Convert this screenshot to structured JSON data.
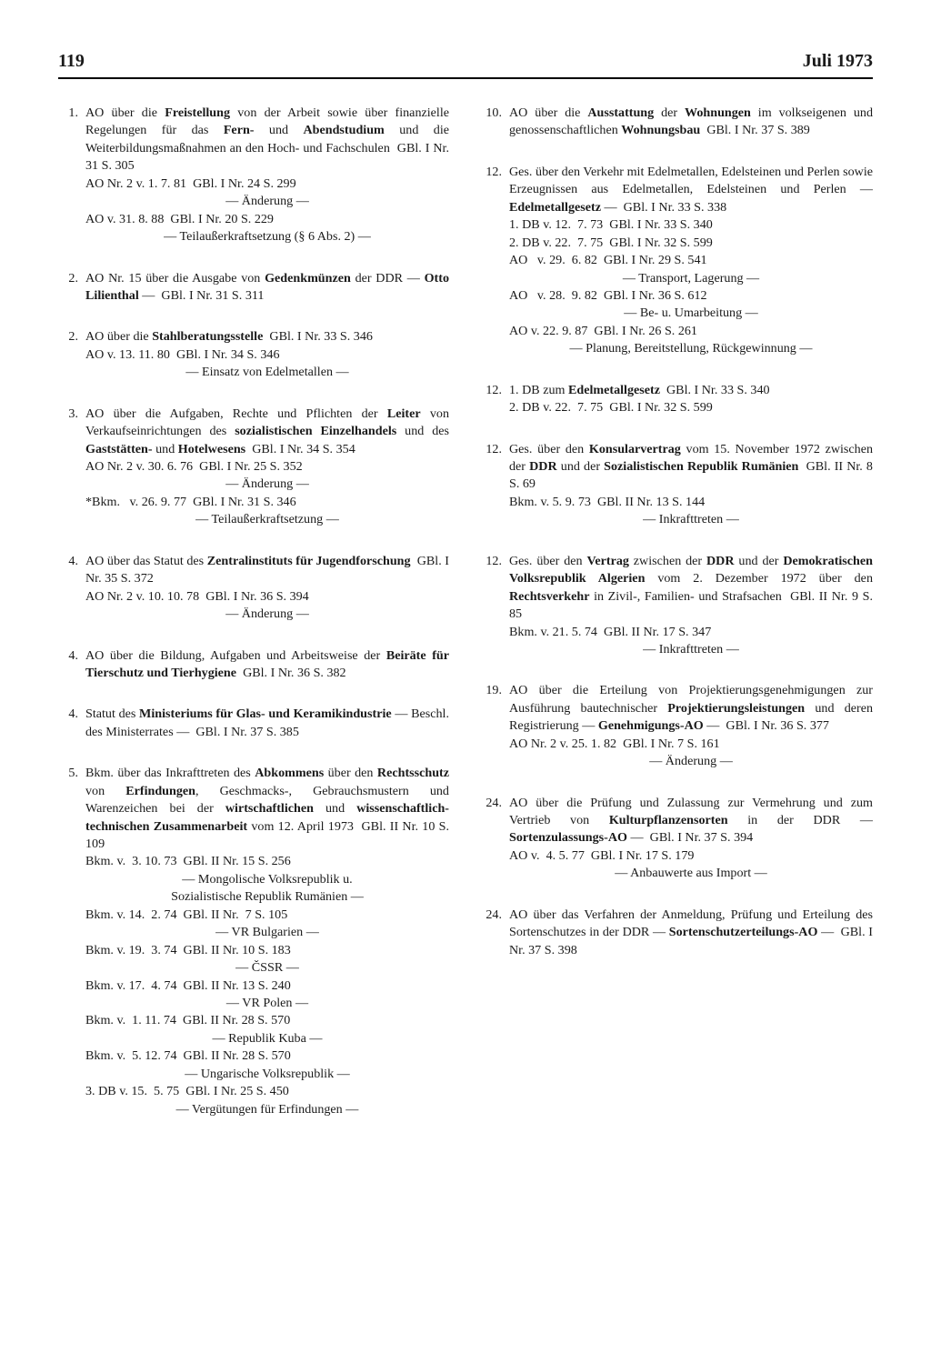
{
  "header": {
    "page": "119",
    "month": "Juli 1973"
  },
  "left": [
    {
      "n": "1.",
      "lines": [
        "AO über die <b>Freistellung</b> von der Arbeit sowie über finanzielle Regelungen für das <b>Fern-</b> und <b>Abendstudium</b> und die Weiterbildungsmaßnahmen an den Hoch- und Fachschulen&nbsp;&nbsp;GBl. I Nr. 31 S. 305",
        "AO Nr. 2 v. 1. 7. 81&nbsp;&nbsp;GBl. I Nr. 24 S. 299",
        "<span class='center'>— Änderung —</span>",
        "AO v. 31. 8. 88&nbsp;&nbsp;GBl. I Nr. 20 S. 229",
        "<span class='center'>— Teilaußerkraftsetzung (§ 6 Abs. 2) —</span>"
      ]
    },
    {
      "n": "2.",
      "lines": [
        "AO Nr. 15 über die Ausgabe von <b>Gedenkmünzen</b> der DDR — <b>Otto Lilienthal</b> —&nbsp;&nbsp;GBl. I Nr. 31 S. 311"
      ]
    },
    {
      "n": "2.",
      "lines": [
        "AO über die <b>Stahlberatungsstelle</b>&nbsp;&nbsp;GBl. I Nr. 33 S. 346",
        "AO v. 13. 11. 80&nbsp;&nbsp;GBl. I Nr. 34 S. 346",
        "<span class='center'>— Einsatz von Edelmetallen —</span>"
      ]
    },
    {
      "n": "3.",
      "lines": [
        "AO über die Aufgaben, Rechte und Pflichten der <b>Leiter</b> von Verkaufseinrichtungen des <b>sozialistischen Einzelhandels</b> und des <b>Gaststätten-</b> und <b>Hotelwesens</b>&nbsp;&nbsp;GBl. I Nr. 34 S. 354",
        "AO Nr. 2 v. 30. 6. 76&nbsp;&nbsp;GBl. I Nr. 25 S. 352",
        "<span class='center'>— Änderung —</span>",
        "*Bkm.&nbsp;&nbsp;&nbsp;v. 26. 9. 77&nbsp;&nbsp;GBl. I Nr. 31 S. 346",
        "<span class='center'>— Teilaußerkraftsetzung —</span>"
      ]
    },
    {
      "n": "4.",
      "lines": [
        "AO über das Statut des <b>Zentralinstituts für Jugendforschung</b>&nbsp;&nbsp;GBl. I Nr. 35 S. 372",
        "AO Nr. 2 v. 10. 10. 78&nbsp;&nbsp;GBl. I Nr. 36 S. 394",
        "<span class='center'>— Änderung —</span>"
      ]
    },
    {
      "n": "4.",
      "lines": [
        "AO über die Bildung, Aufgaben und Arbeitsweise der <b>Beiräte für Tierschutz und Tierhygiene</b>&nbsp;&nbsp;GBl. I Nr. 36 S. 382"
      ]
    },
    {
      "n": "4.",
      "lines": [
        "Statut des <b>Ministeriums für Glas- und Keramikindustrie</b> — Beschl. des Ministerrates —&nbsp;&nbsp;GBl. I Nr. 37 S. 385"
      ]
    },
    {
      "n": "5.",
      "lines": [
        "Bkm. über das Inkrafttreten des <b>Abkommens</b> über den <b>Rechtsschutz</b> von <b>Erfindungen</b>, Geschmacks-, Gebrauchsmustern und Warenzeichen bei der <b>wirtschaftlichen</b> und <b>wissenschaftlich-technischen Zusammenarbeit</b> vom 12. April 1973&nbsp;&nbsp;GBl. II Nr. 10 S. 109",
        "Bkm. v.&nbsp;&nbsp;3. 10. 73&nbsp;&nbsp;GBl. II Nr. 15 S. 256",
        "<span class='center'>— Mongolische Volksrepublik u.<br>Sozialistische Republik Rumänien —</span>",
        "Bkm. v. 14.&nbsp;&nbsp;2. 74&nbsp;&nbsp;GBl. II Nr.&nbsp;&nbsp;7 S. 105",
        "<span class='center'>— VR Bulgarien —</span>",
        "Bkm. v. 19.&nbsp;&nbsp;3. 74&nbsp;&nbsp;GBl. II Nr. 10 S. 183",
        "<span class='center'>— ČSSR —</span>",
        "Bkm. v. 17.&nbsp;&nbsp;4. 74&nbsp;&nbsp;GBl. II Nr. 13 S. 240",
        "<span class='center'>— VR Polen —</span>",
        "Bkm. v.&nbsp;&nbsp;1. 11. 74&nbsp;&nbsp;GBl. II Nr. 28 S. 570",
        "<span class='center'>— Republik Kuba —</span>",
        "Bkm. v.&nbsp;&nbsp;5. 12. 74&nbsp;&nbsp;GBl. II Nr. 28 S. 570",
        "<span class='center'>— Ungarische Volksrepublik —</span>",
        "3. DB v. 15.&nbsp;&nbsp;5. 75&nbsp;&nbsp;GBl. I Nr. 25 S. 450",
        "<span class='center'>— Vergütungen für Erfindungen —</span>"
      ]
    }
  ],
  "right": [
    {
      "n": "10.",
      "lines": [
        "AO über die <b>Ausstattung</b> der <b>Wohnungen</b> im volkseigenen und genossenschaftlichen <b>Wohnungsbau</b>&nbsp;&nbsp;GBl. I Nr. 37 S. 389"
      ]
    },
    {
      "n": "12.",
      "lines": [
        "Ges. über den Verkehr mit Edelmetallen, Edelsteinen und Perlen sowie Erzeugnissen aus Edelmetallen, Edelsteinen und Perlen — <b>Edelmetallgesetz</b> —&nbsp;&nbsp;GBl. I Nr. 33 S. 338",
        "1. DB v. 12.&nbsp;&nbsp;7. 73&nbsp;&nbsp;GBl. I Nr. 33 S. 340",
        "2. DB v. 22.&nbsp;&nbsp;7. 75&nbsp;&nbsp;GBl. I Nr. 32 S. 599",
        "AO&nbsp;&nbsp;&nbsp;v. 29.&nbsp;&nbsp;6. 82&nbsp;&nbsp;GBl. I Nr. 29 S. 541",
        "<span class='center'>— Transport, Lagerung —</span>",
        "AO&nbsp;&nbsp;&nbsp;v. 28.&nbsp;&nbsp;9. 82&nbsp;&nbsp;GBl. I Nr. 36 S. 612",
        "<span class='center'>— Be- u. Umarbeitung —</span>",
        "AO v. 22. 9. 87&nbsp;&nbsp;GBl. I Nr. 26 S. 261",
        "<span class='center'>— Planung, Bereitstellung, Rückgewinnung —</span>"
      ]
    },
    {
      "n": "12.",
      "lines": [
        "1. DB zum <b>Edelmetallgesetz</b>&nbsp;&nbsp;GBl. I Nr. 33 S. 340",
        "2. DB v. 22.&nbsp;&nbsp;7. 75&nbsp;&nbsp;GBl. I Nr. 32 S. 599"
      ]
    },
    {
      "n": "12.",
      "lines": [
        "Ges. über den <b>Konsularvertrag</b> vom 15. November 1972 zwischen der <b>DDR</b> und der <b>Sozialistischen Republik Rumänien</b>&nbsp;&nbsp;GBl. II Nr. 8 S. 69",
        "Bkm. v. 5. 9. 73&nbsp;&nbsp;GBl. II Nr. 13 S. 144",
        "<span class='center'>— Inkrafttreten —</span>"
      ]
    },
    {
      "n": "12.",
      "lines": [
        "Ges. über den <b>Vertrag</b> zwischen der <b>DDR</b> und der <b>Demokratischen Volksrepublik Algerien</b> vom 2. Dezember 1972 über den <b>Rechtsverkehr</b> in Zivil-, Familien- und Strafsachen&nbsp;&nbsp;GBl. II Nr. 9 S. 85",
        "Bkm. v. 21. 5. 74&nbsp;&nbsp;GBl. II Nr. 17 S. 347",
        "<span class='center'>— Inkrafttreten —</span>"
      ]
    },
    {
      "n": "19.",
      "lines": [
        "AO über die Erteilung von Projektierungsgenehmigungen zur Ausführung bautechnischer <b>Projektierungsleistungen</b> und deren Registrierung — <b>Genehmigungs-AO</b> —&nbsp;&nbsp;GBl. I Nr. 36 S. 377",
        "AO Nr. 2 v. 25. 1. 82&nbsp;&nbsp;GBl. I Nr. 7 S. 161",
        "<span class='center'>— Änderung —</span>"
      ]
    },
    {
      "n": "24.",
      "lines": [
        "AO über die Prüfung und Zulassung zur Vermehrung und zum Vertrieb von <b>Kulturpflanzensorten</b> in der DDR — <b>Sortenzulassungs-AO</b> —&nbsp;&nbsp;GBl. I Nr. 37 S. 394",
        "AO v.&nbsp;&nbsp;4. 5. 77&nbsp;&nbsp;GBl. I Nr. 17 S. 179",
        "<span class='center'>— Anbauwerte aus Import —</span>"
      ]
    },
    {
      "n": "24.",
      "lines": [
        "AO über das Verfahren der Anmeldung, Prüfung und Erteilung des Sortenschutzes in der DDR — <b>Sortenschutzerteilungs-AO</b> —&nbsp;&nbsp;GBl. I Nr. 37 S. 398"
      ]
    }
  ]
}
